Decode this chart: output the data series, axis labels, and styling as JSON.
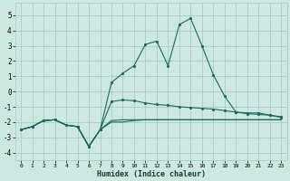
{
  "xlabel": "Humidex (Indice chaleur)",
  "xlim": [
    -0.5,
    23.5
  ],
  "ylim": [
    -4.5,
    5.8
  ],
  "yticks": [
    -4,
    -3,
    -2,
    -1,
    0,
    1,
    2,
    3,
    4,
    5
  ],
  "xticks": [
    0,
    1,
    2,
    3,
    4,
    5,
    6,
    7,
    8,
    9,
    10,
    11,
    12,
    13,
    14,
    15,
    16,
    17,
    18,
    19,
    20,
    21,
    22,
    23
  ],
  "bg_color": "#cce8e0",
  "grid_color": "#a0c8be",
  "line_color": "#1a6b5e",
  "line1_x": [
    0,
    1,
    2,
    3,
    4,
    5,
    6,
    7,
    8,
    9,
    10,
    11,
    12,
    13,
    14,
    15,
    16,
    17,
    18,
    19,
    20,
    21,
    22,
    23
  ],
  "line1_y": [
    -2.5,
    -2.3,
    -1.9,
    -1.85,
    -2.2,
    -2.3,
    -3.6,
    -2.5,
    -0.65,
    -0.55,
    -0.6,
    -0.75,
    -0.85,
    -0.9,
    -1.0,
    -1.05,
    -1.1,
    -1.15,
    -1.25,
    -1.35,
    -1.45,
    -1.5,
    -1.55,
    -1.65
  ],
  "line2_x": [
    0,
    1,
    2,
    3,
    4,
    5,
    6,
    7,
    8,
    9,
    10,
    11,
    12,
    13,
    14,
    15,
    16,
    17,
    18,
    19,
    20,
    21,
    22,
    23
  ],
  "line2_y": [
    -2.5,
    -2.3,
    -1.9,
    -1.85,
    -2.2,
    -2.3,
    -3.6,
    -2.5,
    -1.9,
    -1.85,
    -1.85,
    -1.85,
    -1.85,
    -1.85,
    -1.85,
    -1.85,
    -1.85,
    -1.85,
    -1.85,
    -1.85,
    -1.85,
    -1.85,
    -1.85,
    -1.85
  ],
  "line3_x": [
    0,
    1,
    2,
    3,
    4,
    5,
    6,
    7,
    8,
    9,
    10,
    11,
    12,
    13,
    14,
    15,
    16,
    17,
    18,
    19,
    20,
    21,
    22,
    23
  ],
  "line3_y": [
    -2.5,
    -2.3,
    -1.9,
    -1.85,
    -2.2,
    -2.3,
    -3.6,
    -2.5,
    -2.0,
    -2.0,
    -1.9,
    -1.85,
    -1.85,
    -1.85,
    -1.85,
    -1.85,
    -1.85,
    -1.85,
    -1.85,
    -1.85,
    -1.85,
    -1.85,
    -1.85,
    -1.85
  ],
  "line_upper_x": [
    0,
    1,
    2,
    3,
    4,
    5,
    6,
    7,
    8,
    9,
    10,
    11,
    12,
    13,
    14,
    15,
    16,
    17,
    18,
    19,
    20,
    21,
    22,
    23
  ],
  "line_upper_y": [
    -2.5,
    -2.3,
    -1.9,
    -1.85,
    -2.2,
    -2.3,
    -3.6,
    -2.5,
    0.6,
    1.2,
    1.7,
    3.1,
    3.3,
    1.7,
    4.4,
    4.8,
    3.0,
    1.1,
    -0.3,
    -1.35,
    -1.4,
    -1.4,
    -1.55,
    -1.7
  ]
}
